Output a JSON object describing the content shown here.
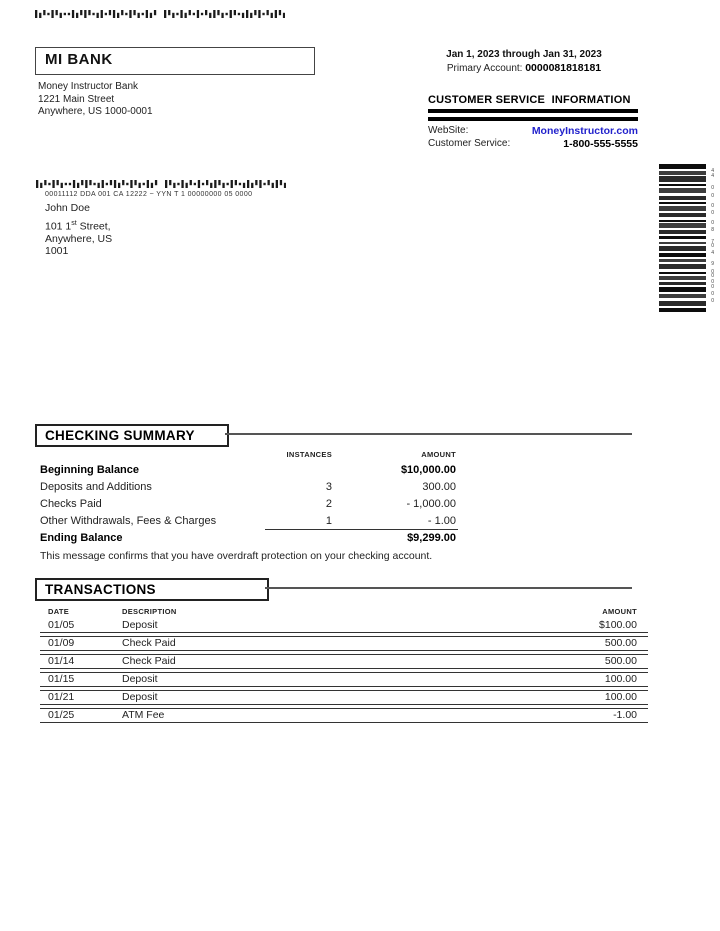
{
  "header": {
    "bank_name": "MI BANK",
    "bank_address_lines": [
      "Money Instructor Bank",
      "1221 Main Street",
      "Anywhere, US 1000-0001"
    ],
    "statement_period": "Jan 1, 2023 through Jan 31, 2023",
    "primary_account_label": "Primary Account: ",
    "primary_account_number": "0000081818181"
  },
  "customer_service": {
    "title": "CUSTOMER SERVICE  INFORMATION",
    "website_label": "WebSite:",
    "website_value": "MoneyInstructor.com",
    "phone_label": "Customer Service:",
    "phone_value": "1-800-555-5555",
    "link_color": "#2222cc"
  },
  "recipient": {
    "mail_code_line": "00011112 DDA 001 CA 12222 ~ YYN T 1 00000000 05 0000",
    "name": "John Doe",
    "address_line1_prefix": "101 1",
    "address_line1_sup": "st",
    "address_line1_suffix": " Street,",
    "address_line2": "Anywhere, US",
    "address_line3": "1001"
  },
  "barcodes": {
    "right_digits": [
      "",
      "4",
      "4",
      "",
      "0",
      "0",
      "",
      "0",
      "0",
      "",
      "0",
      "8",
      "",
      "7",
      "0",
      "4",
      "",
      "9",
      "0",
      "0",
      "0",
      "0",
      "0",
      "0",
      ""
    ]
  },
  "checking_summary": {
    "title": "CHECKING SUMMARY",
    "col_instances": "INSTANCES",
    "col_amount": "AMOUNT",
    "rows": [
      {
        "label": "Beginning Balance",
        "instances": "",
        "amount": "$10,000.00",
        "style": "bold"
      },
      {
        "label": "Deposits and Additions",
        "instances": "3",
        "amount": "300.00"
      },
      {
        "label": "Checks Paid",
        "instances": "2",
        "amount": "- 1,000.00"
      },
      {
        "label": "Other Withdrawals, Fees & Charges",
        "instances": "1",
        "amount": "-  1.00",
        "style": "underline"
      },
      {
        "label": "Ending Balance",
        "instances": "",
        "amount": "$9,299.00",
        "style": "bold"
      }
    ],
    "note": "This message confirms that you have overdraft protection on your checking account."
  },
  "transactions": {
    "title": "TRANSACTIONS",
    "col_date": "DATE",
    "col_description": "DESCRIPTION",
    "col_amount": "AMOUNT",
    "rows": [
      {
        "date": "01/05",
        "description": "Deposit",
        "amount": "$100.00"
      },
      {
        "date": "01/09",
        "description": "Check Paid",
        "amount": "500.00"
      },
      {
        "date": "01/14",
        "description": "Check Paid",
        "amount": "500.00"
      },
      {
        "date": "01/15",
        "description": "Deposit",
        "amount": "100.00"
      },
      {
        "date": "01/21",
        "description": "Deposit",
        "amount": "100.00"
      },
      {
        "date": "01/25",
        "description": "ATM Fee",
        "amount": "-1.00"
      }
    ]
  }
}
